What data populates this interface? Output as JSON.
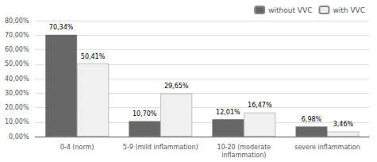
{
  "chart_data": {
    "type": "bar",
    "categories": [
      "0-4 (norm)",
      "5-9 (mild inflammation)",
      "10-20 (moderate\ninflammation)",
      "severe inflammation"
    ],
    "series": [
      {
        "name": "without VVC",
        "color": "#666666",
        "values": [
          70.34,
          10.7,
          12.01,
          6.98
        ],
        "value_labels": [
          "70,34%",
          "10,70%",
          "12,01%",
          "6,98%"
        ]
      },
      {
        "name": "with VVC",
        "color": "#f0f0f0",
        "values": [
          50.41,
          29.65,
          16.47,
          3.46
        ],
        "value_labels": [
          "50,41%",
          "29,65%",
          "16,47%",
          "3,46%"
        ]
      }
    ],
    "ylim": [
      0,
      80
    ],
    "yticks": [
      {
        "value": 0,
        "label": "0,00%"
      },
      {
        "value": 10,
        "label": "10,00%"
      },
      {
        "value": 20,
        "label": "20,00%"
      },
      {
        "value": 30,
        "label": "30,00%"
      },
      {
        "value": 40,
        "label": "40,00%"
      },
      {
        "value": 50,
        "label": "50,00%"
      },
      {
        "value": 60,
        "label": "60,00%"
      },
      {
        "value": 70,
        "label": "70,00%"
      },
      {
        "value": 80,
        "label": "80,00%"
      }
    ],
    "grid": true,
    "legend": "upper right",
    "data_labels": true
  }
}
